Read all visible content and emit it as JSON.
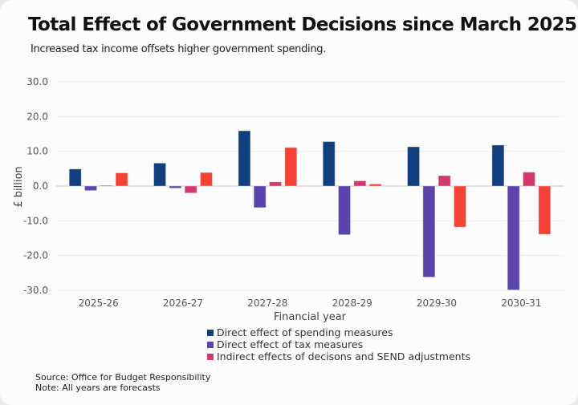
{
  "chart_data": {
    "type": "bar",
    "title": "Total Effect of Government Decisions since March 2025",
    "subtitle": "Increased tax income offsets higher government spending.",
    "xlabel": "Financial year",
    "ylabel": "£ billion",
    "ylim": [
      -30,
      30
    ],
    "yticks": [
      30,
      20,
      10,
      0,
      -10,
      -20,
      -30
    ],
    "ytick_labels": [
      "30.0",
      "20.0",
      "10.0",
      "0.0",
      "-10.0",
      "-20.0",
      "-30.0"
    ],
    "grid": true,
    "legend_position": "bottom",
    "categories": [
      "2025-26",
      "2026-27",
      "2027-28",
      "2028-29",
      "2029-30",
      "2030-31"
    ],
    "series": [
      {
        "name": "Direct effect of spending measures",
        "color": "#12407f",
        "values": [
          4.9,
          6.6,
          15.9,
          12.8,
          11.3,
          11.8
        ],
        "in_legend": true
      },
      {
        "name": "Direct effect of tax measures",
        "color": "#5b44ac",
        "values": [
          -1.3,
          -0.6,
          -6.2,
          -14.0,
          -26.2,
          -29.9
        ],
        "in_legend": true
      },
      {
        "name": "Indirect effects of decisons and SEND adjustments",
        "color": "#d3396f",
        "values": [
          0.2,
          -2.0,
          1.2,
          1.5,
          3.0,
          4.0
        ],
        "in_legend": true
      },
      {
        "name": "",
        "color": "#f44336",
        "values": [
          3.8,
          3.9,
          11.1,
          0.6,
          -11.8,
          -13.9
        ],
        "in_legend": false
      }
    ]
  },
  "footer": {
    "source": "Source: Office for Budget Responsibility",
    "note": "Note: All years are forecasts"
  }
}
